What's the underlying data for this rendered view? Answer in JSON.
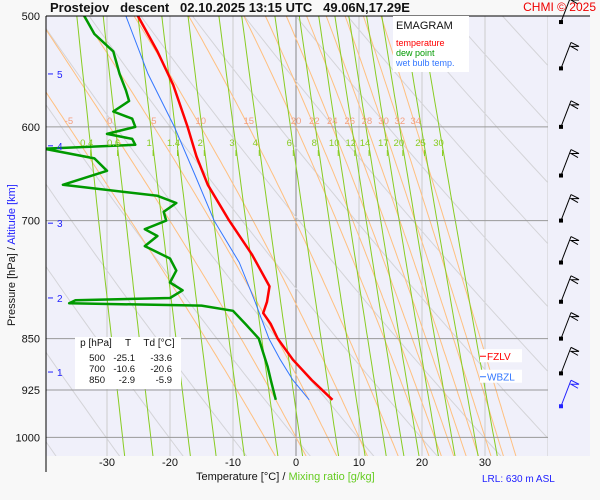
{
  "chart_data": {
    "type": "line",
    "title": "Prostejov   descent   02.10.2025 13:15 UTC   49.06N,17.29E",
    "copyright": "CHMI © 2025",
    "xlabel": "Temperature [°C]",
    "xlabel_sep": "/",
    "xlabel2": "Mixing ratio [g/kg]",
    "ylabel": "Pressure [hPa]",
    "ylabel_sep": "/",
    "ylabel2": "Altitude [km]",
    "xlim": [
      -38,
      42
    ],
    "ylim": [
      1050,
      500
    ],
    "x_ticks": [
      -30,
      -20,
      -10,
      0,
      10,
      20,
      30
    ],
    "y_ticks": [
      500,
      600,
      700,
      850,
      925,
      1000
    ],
    "altitude_ticks": [
      {
        "km": "5",
        "p": 550
      },
      {
        "km": "4",
        "p": 619
      },
      {
        "km": "3",
        "p": 703
      },
      {
        "km": "2",
        "p": 795
      },
      {
        "km": "1",
        "p": 898
      }
    ],
    "legend": {
      "title": "EMAGRAM",
      "placement": "top-right",
      "items": [
        {
          "label": "temperature",
          "color": "#ff0000"
        },
        {
          "label": "dew point",
          "color": "#009900"
        },
        {
          "label": "wet bulb temp.",
          "color": "#3377ff"
        }
      ]
    },
    "moist_adiabat_labels": [
      "-5",
      "0",
      "5",
      "10",
      "15",
      "20",
      "22",
      "24",
      "26",
      "28",
      "30",
      "32",
      "34"
    ],
    "mixing_ratio_labels": [
      "0.4",
      "0.6",
      "1",
      "1.4",
      "2",
      "3",
      "4",
      "6",
      "8",
      "10",
      "12",
      "14",
      "17",
      "20",
      "25",
      "30"
    ],
    "series": [
      {
        "name": "temperature",
        "color": "#ff0000",
        "points": [
          [
            500,
            -25.1
          ],
          [
            530,
            -22
          ],
          [
            560,
            -19.5
          ],
          [
            600,
            -17.2
          ],
          [
            630,
            -15.8
          ],
          [
            660,
            -14
          ],
          [
            700,
            -10.6
          ],
          [
            740,
            -7
          ],
          [
            780,
            -4.2
          ],
          [
            800,
            -4.6
          ],
          [
            815,
            -5.2
          ],
          [
            830,
            -4
          ],
          [
            850,
            -2.9
          ],
          [
            880,
            -0.5
          ],
          [
            910,
            2.5
          ],
          [
            940,
            5.8
          ]
        ]
      },
      {
        "name": "dew point",
        "color": "#009900",
        "points": [
          [
            500,
            -33.6
          ],
          [
            515,
            -32
          ],
          [
            530,
            -29
          ],
          [
            550,
            -28
          ],
          [
            565,
            -27
          ],
          [
            575,
            -26.5
          ],
          [
            585,
            -29
          ],
          [
            592,
            -26
          ],
          [
            600,
            -25.5
          ],
          [
            607,
            -30
          ],
          [
            612,
            -26
          ],
          [
            618,
            -25.5
          ],
          [
            622,
            -40
          ],
          [
            632,
            -32
          ],
          [
            645,
            -30
          ],
          [
            660,
            -37
          ],
          [
            672,
            -22
          ],
          [
            680,
            -19
          ],
          [
            690,
            -21
          ],
          [
            700,
            -20.6
          ],
          [
            710,
            -24
          ],
          [
            718,
            -22
          ],
          [
            730,
            -24
          ],
          [
            745,
            -20
          ],
          [
            760,
            -19
          ],
          [
            775,
            -20
          ],
          [
            785,
            -18
          ],
          [
            795,
            -20
          ],
          [
            798,
            -35
          ],
          [
            802,
            -36
          ],
          [
            805,
            -15
          ],
          [
            812,
            -10
          ],
          [
            830,
            -8
          ],
          [
            850,
            -5.9
          ],
          [
            870,
            -5.2
          ],
          [
            890,
            -4.5
          ],
          [
            910,
            -4
          ],
          [
            940,
            -3.2
          ]
        ]
      },
      {
        "name": "wet bulb temp.",
        "color": "#3377ff",
        "points": [
          [
            500,
            -27
          ],
          [
            550,
            -23.5
          ],
          [
            600,
            -19.3
          ],
          [
            650,
            -16
          ],
          [
            700,
            -13
          ],
          [
            750,
            -9
          ],
          [
            800,
            -6.5
          ],
          [
            850,
            -4.3
          ],
          [
            880,
            -2.5
          ],
          [
            910,
            -0.5
          ],
          [
            940,
            2.1
          ]
        ]
      }
    ],
    "table": {
      "headers": [
        "p [hPa]",
        "T",
        "Td [°C]"
      ],
      "rows": [
        [
          "500",
          "-25.1",
          "-33.6"
        ],
        [
          "700",
          "-10.6",
          "-20.6"
        ],
        [
          "850",
          "-2.9",
          "-5.9"
        ]
      ]
    },
    "levels": [
      {
        "label": "FZLV",
        "color": "#ff0000",
        "p": 875
      },
      {
        "label": "WBZL",
        "color": "#3377ff",
        "p": 905
      }
    ],
    "wind_barb_levels": [
      505,
      545,
      600,
      650,
      700,
      750,
      800,
      850,
      900,
      950
    ],
    "lrl": "LRL: 630 m ASL"
  }
}
